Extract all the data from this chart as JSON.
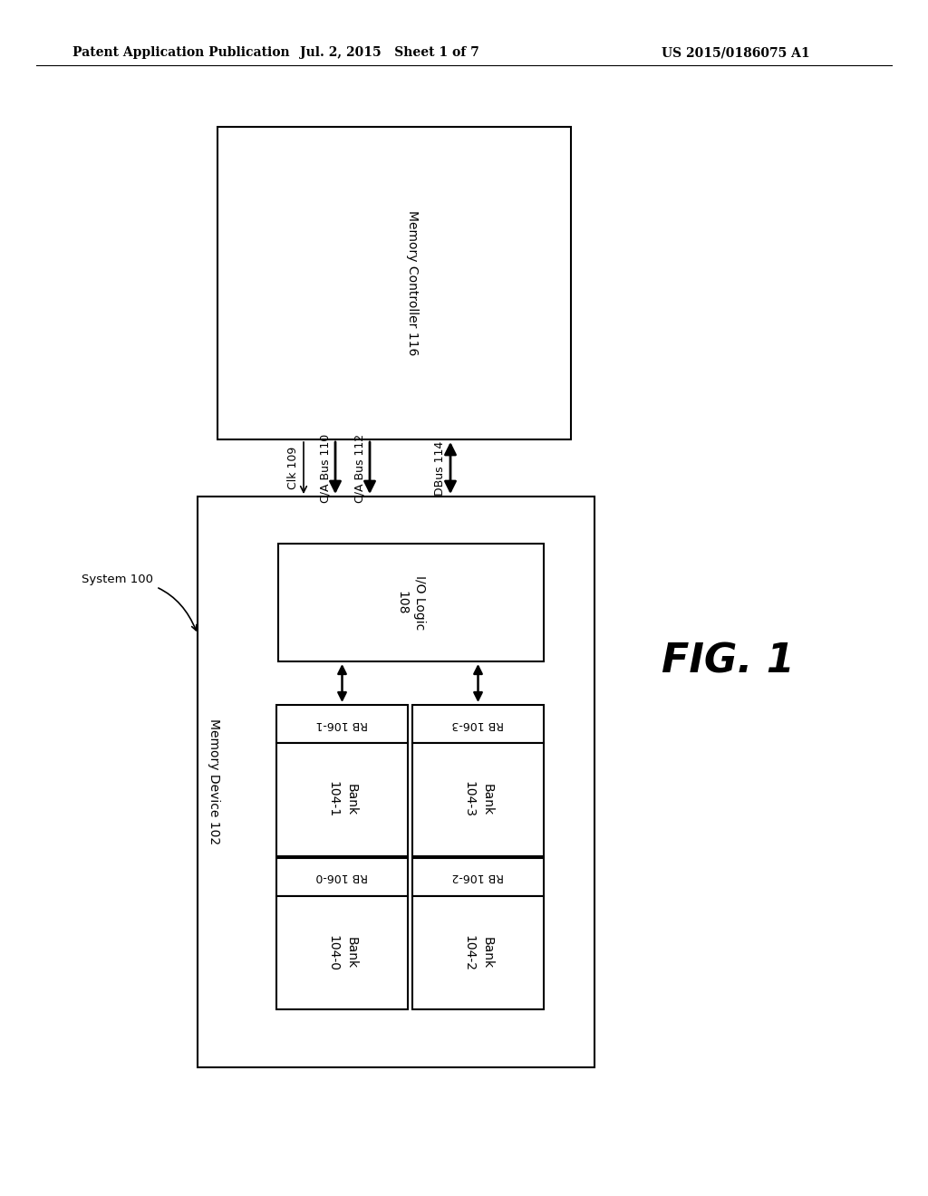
{
  "bg_color": "#ffffff",
  "header_left": "Patent Application Publication",
  "header_mid": "Jul. 2, 2015   Sheet 1 of 7",
  "header_right": "US 2015/0186075 A1",
  "fig_label": "FIG. 1",
  "system_label": "System 100",
  "memory_controller_label": "Memory Controller 116",
  "memory_device_label": "Memory Device 102",
  "io_logic_label": "I/O Logic\n108",
  "bus_labels": [
    "Clk 109",
    "C/A Bus 110",
    "C/A Bus 112",
    "DBus 114"
  ],
  "line_color": "#000000",
  "text_color": "#000000",
  "font_size_header": 10,
  "font_size_label": 10
}
